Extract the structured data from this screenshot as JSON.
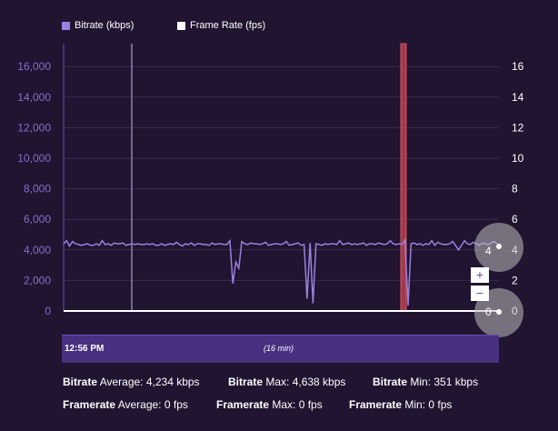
{
  "legend": {
    "bitrate_label": "Bitrate (kbps)",
    "framerate_label": "Frame Rate (fps)",
    "bitrate_color": "#9c7fe0",
    "framerate_color": "#ffffff"
  },
  "chart_data": {
    "type": "line",
    "left_axis": {
      "ticks": [
        "0",
        "2,000",
        "4,000",
        "6,000",
        "8,000",
        "10,000",
        "12,000",
        "14,000",
        "16,000"
      ],
      "ylim": [
        0,
        17500
      ]
    },
    "right_axis": {
      "ticks": [
        "0",
        "2",
        "4",
        "6",
        "8",
        "10",
        "12",
        "14",
        "16"
      ],
      "ylim": [
        0,
        17.5
      ]
    },
    "series": [
      {
        "name": "Bitrate (kbps)",
        "color": "#9c7fe0",
        "values": [
          4400,
          4600,
          4250,
          4550,
          4400,
          4350,
          4300,
          4350,
          4400,
          4300,
          4300,
          4400,
          4300,
          4600,
          4350,
          4400,
          4300,
          4450,
          4400,
          4400,
          4450,
          4300,
          4350,
          4400,
          4350,
          4400,
          4350,
          4350,
          4400,
          4350,
          4400,
          4300,
          4300,
          4400,
          4300,
          4350,
          4400,
          4350,
          4500,
          4350,
          4250,
          4400,
          4350,
          4450,
          4300,
          4400,
          4400,
          4350,
          4350,
          4300,
          4450,
          4350,
          4400,
          4400,
          4350,
          4350,
          4600,
          1800,
          3200,
          2800,
          4550,
          4400,
          4350,
          4450,
          4400,
          4400,
          4350,
          4400,
          4500,
          4300,
          4350,
          4400,
          4400,
          4350,
          4400,
          4550,
          4300,
          4350,
          4400,
          4450,
          4300,
          4350,
          800,
          4450,
          500,
          4400,
          4350,
          4300,
          4400,
          4350,
          4400,
          4400,
          4350,
          4600,
          4350,
          4400,
          4450,
          4350,
          4400,
          4350,
          4400,
          4450,
          4300,
          4400,
          4400,
          4350,
          4450,
          4400,
          4350,
          4400,
          4600,
          4400,
          4350,
          4400,
          4350,
          4650,
          351,
          4400,
          4450,
          4350,
          4400,
          4300,
          4400,
          4350,
          4600,
          4300,
          4500,
          4400,
          4350,
          4350,
          4400,
          4550,
          4300,
          4000,
          4300,
          4600,
          4400,
          4350,
          4500,
          4400,
          4300,
          4450,
          4400,
          4350,
          4450,
          4550,
          4400
        ]
      },
      {
        "name": "Frame Rate (fps)",
        "color": "#ffffff",
        "values": [
          0,
          0
        ]
      }
    ]
  },
  "timeline": {
    "start_label": "12:56 PM",
    "duration_label": "(16 min)"
  },
  "zoom": {
    "in_label": "+",
    "out_label": "−"
  },
  "handles": {
    "upper_label": "4",
    "lower_label": "0"
  },
  "stats": {
    "bitrate_key": "Bitrate",
    "avg_text": "Average: 4,234 kbps",
    "max_text": "Max: 4,638 kbps",
    "min_text": "Min: 351 kbps",
    "framerate_key": "Framerate",
    "fr_avg_text": "Average: 0 fps",
    "fr_max_text": "Max: 0 fps",
    "fr_min_text": "Min: 0 fps"
  }
}
